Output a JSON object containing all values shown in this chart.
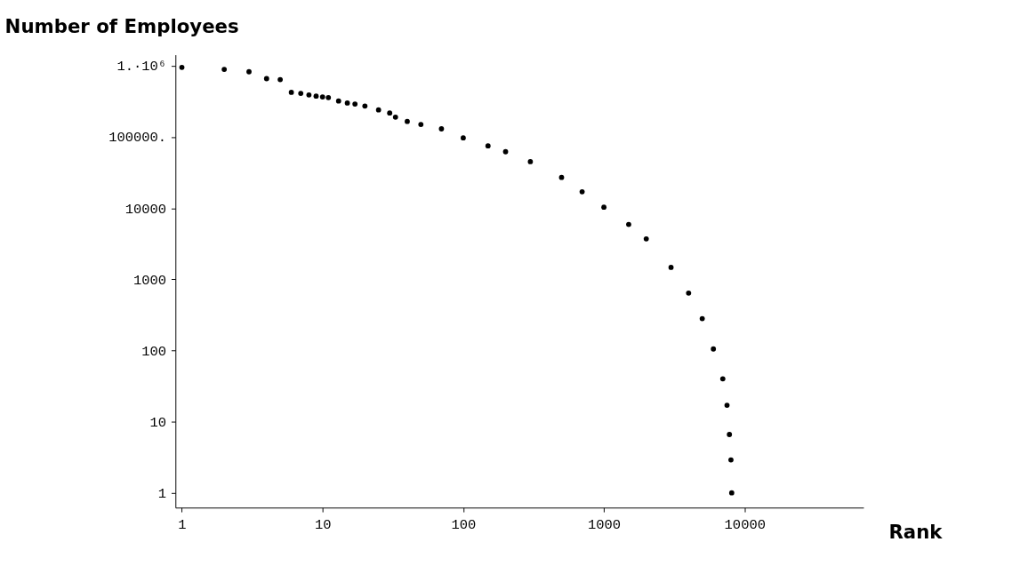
{
  "chart_data": {
    "type": "scatter",
    "title": "Number of Employees",
    "xlabel": "Rank",
    "x": [
      1,
      2,
      3,
      4,
      5,
      6,
      7,
      8,
      9,
      10,
      11,
      13,
      15,
      17,
      20,
      25,
      30,
      33,
      40,
      50,
      70,
      100,
      150,
      200,
      300,
      500,
      700,
      1000,
      1500,
      2000,
      3000,
      4000,
      5000,
      6000,
      7000,
      7500,
      7800,
      8000,
      8100
    ],
    "series": [
      {
        "color": "#000000",
        "values": [
          950000,
          890000,
          825000,
          660000,
          640000,
          424000,
          410000,
          390000,
          375000,
          365000,
          357000,
          320000,
          300000,
          290000,
          272000,
          240000,
          217000,
          190000,
          165000,
          150000,
          130000,
          97000,
          75000,
          62000,
          45000,
          27000,
          17000,
          10300,
          5900,
          3700,
          1470,
          640,
          280,
          105,
          40,
          17,
          6.6,
          2.9,
          1
        ]
      }
    ],
    "log": "xy",
    "xlim": [
      0.9,
      70000
    ],
    "ylim": [
      0.62,
      1430000
    ],
    "xticks": [
      1,
      10,
      100,
      1000,
      10000
    ],
    "yticks": [
      1,
      10,
      100,
      1000,
      10000,
      {
        "value": 100000,
        "label": "100000."
      },
      {
        "value": 1000000,
        "label": "1.·10⁶"
      }
    ],
    "grid": false,
    "marker": "circle"
  }
}
